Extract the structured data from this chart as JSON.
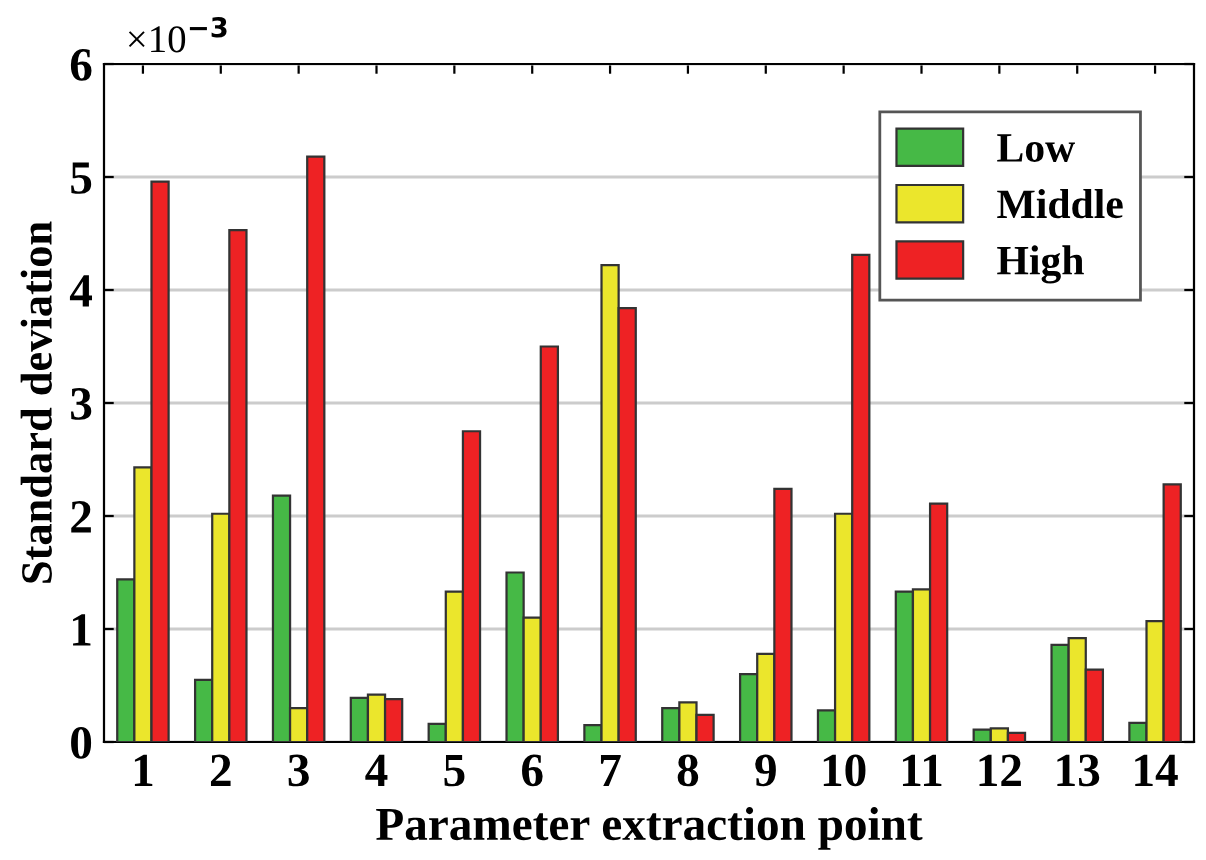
{
  "chart_data": {
    "type": "bar",
    "xlabel": "Parameter extraction point",
    "ylabel": "Standard deviation",
    "annotations": [
      "×10$^{−3}$"
    ],
    "categories": [
      "1",
      "2",
      "3",
      "4",
      "5",
      "6",
      "7",
      "8",
      "9",
      "10",
      "11",
      "12",
      "13",
      "14"
    ],
    "series": [
      {
        "name": "Low",
        "color": "#46b946",
        "values": [
          1.44,
          0.55,
          2.18,
          0.39,
          0.16,
          1.5,
          0.15,
          0.3,
          0.6,
          0.28,
          1.33,
          0.11,
          0.86,
          0.17
        ]
      },
      {
        "name": "Middle",
        "color": "#ebe62c",
        "values": [
          2.43,
          2.02,
          0.3,
          0.42,
          1.33,
          1.1,
          4.22,
          0.35,
          0.78,
          2.02,
          1.35,
          0.12,
          0.92,
          1.07
        ]
      },
      {
        "name": "High",
        "color": "#ee2224",
        "values": [
          4.96,
          4.53,
          5.18,
          0.38,
          2.75,
          3.5,
          3.84,
          0.24,
          2.24,
          4.31,
          2.11,
          0.08,
          0.64,
          2.28
        ]
      }
    ],
    "ylim": [
      0,
      6
    ],
    "yticks": [
      0,
      1,
      2,
      3,
      4,
      5,
      6
    ],
    "grid": "y",
    "legend": "top right"
  }
}
